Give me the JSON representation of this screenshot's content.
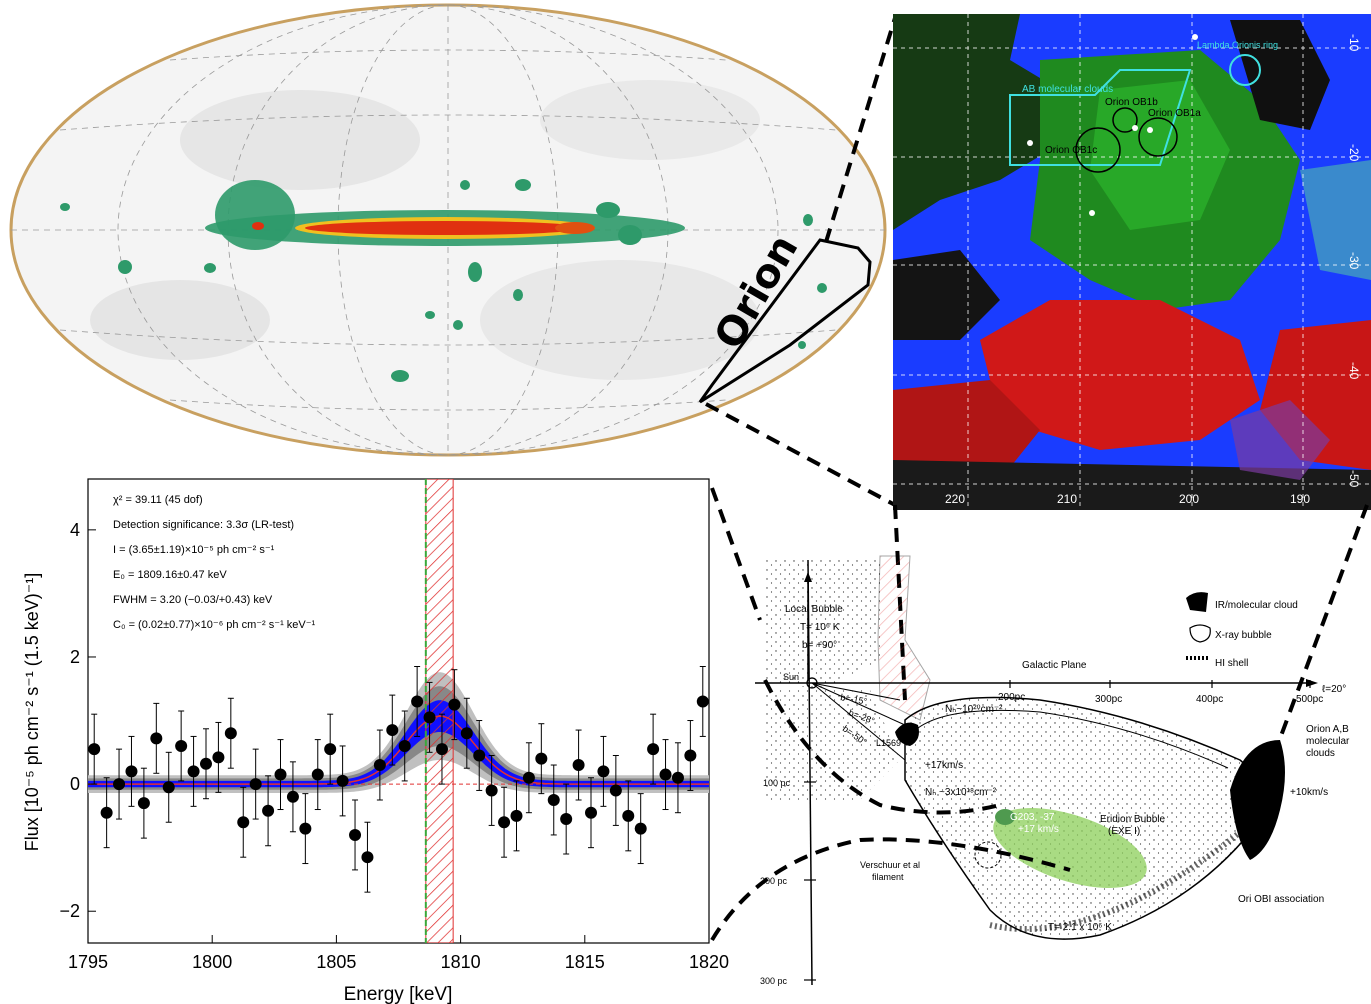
{
  "skymap": {
    "label": "Orion"
  },
  "colormap_panel": {
    "x_ticks": [
      "220",
      "210",
      "200",
      "190"
    ],
    "y_ticks": [
      "-10",
      "-20",
      "-30",
      "-40",
      "-50"
    ],
    "labels": {
      "lambda": "Lambda Orionis ring",
      "ab_clouds": "AB molecular clouds",
      "ob1b": "Orion OB1b",
      "ob1a": "Orion OB1a",
      "ob1c": "Orion OB1c"
    },
    "colors": {
      "blue": "#1a3cff",
      "green": "#1e7a1e",
      "red": "#d01818",
      "cyan": "#40e0e0"
    }
  },
  "chart_data": {
    "type": "scatter",
    "xlabel": "Energy [keV]",
    "ylabel": "Flux [10⁻⁵ ph cm⁻² s⁻¹ (1.5 keV)⁻¹]",
    "xlim": [
      1795,
      1820
    ],
    "ylim": [
      -2.5,
      4.8
    ],
    "x_ticks": [
      1795,
      1800,
      1805,
      1810,
      1815,
      1820
    ],
    "y_ticks": [
      -2,
      0,
      2,
      4
    ],
    "annotations": [
      "χ² = 39.11 (45 dof)",
      "Detection significance: 3.3σ (LR-test)",
      "I = (3.65±1.19)×10⁻⁵ ph cm⁻² s⁻¹",
      "E₀ = 1809.16±0.47 keV",
      "FWHM = 3.20 (−0.03/+0.43) keV",
      "C₀ = (0.02±0.77)×10⁻⁶ ph cm⁻² s⁻¹ keV⁻¹"
    ],
    "line_center": 1809.16,
    "line_fwhm": 3.2,
    "line_amplitude": 1.07,
    "hatched_band": [
      1808.6,
      1809.7
    ],
    "green_line_x": 1808.6,
    "points": [
      {
        "x": 1795.25,
        "y": 0.55,
        "e": 0.55
      },
      {
        "x": 1795.75,
        "y": -0.45,
        "e": 0.55
      },
      {
        "x": 1796.25,
        "y": 0.0,
        "e": 0.55
      },
      {
        "x": 1796.75,
        "y": 0.2,
        "e": 0.55
      },
      {
        "x": 1797.25,
        "y": -0.3,
        "e": 0.55
      },
      {
        "x": 1797.75,
        "y": 0.72,
        "e": 0.55
      },
      {
        "x": 1798.25,
        "y": -0.05,
        "e": 0.55
      },
      {
        "x": 1798.75,
        "y": 0.6,
        "e": 0.55
      },
      {
        "x": 1799.25,
        "y": 0.2,
        "e": 0.55
      },
      {
        "x": 1799.75,
        "y": 0.32,
        "e": 0.55
      },
      {
        "x": 1800.25,
        "y": 0.42,
        "e": 0.55
      },
      {
        "x": 1800.75,
        "y": 0.8,
        "e": 0.55
      },
      {
        "x": 1801.25,
        "y": -0.6,
        "e": 0.55
      },
      {
        "x": 1801.75,
        "y": 0.0,
        "e": 0.55
      },
      {
        "x": 1802.25,
        "y": -0.42,
        "e": 0.55
      },
      {
        "x": 1802.75,
        "y": 0.15,
        "e": 0.55
      },
      {
        "x": 1803.25,
        "y": -0.2,
        "e": 0.55
      },
      {
        "x": 1803.75,
        "y": -0.7,
        "e": 0.55
      },
      {
        "x": 1804.25,
        "y": 0.15,
        "e": 0.55
      },
      {
        "x": 1804.75,
        "y": 0.55,
        "e": 0.55
      },
      {
        "x": 1805.25,
        "y": 0.05,
        "e": 0.55
      },
      {
        "x": 1805.75,
        "y": -0.8,
        "e": 0.55
      },
      {
        "x": 1806.25,
        "y": -1.15,
        "e": 0.55
      },
      {
        "x": 1806.75,
        "y": 0.3,
        "e": 0.55
      },
      {
        "x": 1807.25,
        "y": 0.85,
        "e": 0.55
      },
      {
        "x": 1807.75,
        "y": 0.6,
        "e": 0.55
      },
      {
        "x": 1808.25,
        "y": 1.3,
        "e": 0.55
      },
      {
        "x": 1808.75,
        "y": 1.05,
        "e": 0.55
      },
      {
        "x": 1809.25,
        "y": 0.55,
        "e": 0.55
      },
      {
        "x": 1809.75,
        "y": 1.25,
        "e": 0.55
      },
      {
        "x": 1810.25,
        "y": 0.8,
        "e": 0.55
      },
      {
        "x": 1810.75,
        "y": 0.45,
        "e": 0.55
      },
      {
        "x": 1811.25,
        "y": -0.1,
        "e": 0.55
      },
      {
        "x": 1811.75,
        "y": -0.6,
        "e": 0.55
      },
      {
        "x": 1812.25,
        "y": -0.5,
        "e": 0.55
      },
      {
        "x": 1812.75,
        "y": 0.1,
        "e": 0.55
      },
      {
        "x": 1813.25,
        "y": 0.4,
        "e": 0.55
      },
      {
        "x": 1813.75,
        "y": -0.25,
        "e": 0.55
      },
      {
        "x": 1814.25,
        "y": -0.55,
        "e": 0.55
      },
      {
        "x": 1814.75,
        "y": 0.3,
        "e": 0.55
      },
      {
        "x": 1815.25,
        "y": -0.45,
        "e": 0.55
      },
      {
        "x": 1815.75,
        "y": 0.2,
        "e": 0.55
      },
      {
        "x": 1816.25,
        "y": -0.1,
        "e": 0.55
      },
      {
        "x": 1816.75,
        "y": -0.5,
        "e": 0.55
      },
      {
        "x": 1817.25,
        "y": -0.7,
        "e": 0.55
      },
      {
        "x": 1817.75,
        "y": 0.55,
        "e": 0.55
      },
      {
        "x": 1818.25,
        "y": 0.15,
        "e": 0.55
      },
      {
        "x": 1818.75,
        "y": 0.1,
        "e": 0.55
      },
      {
        "x": 1819.25,
        "y": 0.45,
        "e": 0.55
      },
      {
        "x": 1819.75,
        "y": 1.3,
        "e": 0.55
      }
    ]
  },
  "diagram": {
    "local_bubble": "Local Bubble",
    "local_temp": "T= 10⁶ K",
    "b90": "b= +90°",
    "sun": "Sun",
    "galactic_plane": "Galactic Plane",
    "dist_200": "200pc",
    "dist_300": "300pc",
    "dist_400": "400pc",
    "dist_500": "500pc",
    "l20": "ℓ=20°",
    "b_m15": "b=-15°",
    "b_m28": "b=-28°",
    "b_m50": "b=-50°",
    "l1569": "L1569",
    "nh1": "Nₕ~10²⁰cm⁻²",
    "nh2": "Nₕ ~3x10¹⁸cm⁻²",
    "v17": "+17km/s",
    "v10": "+10km/s",
    "legend_ir": "IR/molecular cloud",
    "legend_xray": "X-ray bubble",
    "legend_hi": "HI shell",
    "orion_ab": "Orion A,B",
    "molecular": "molecular",
    "clouds": "clouds",
    "eridion": "Eridion Bubble",
    "exe": "(EXE I)",
    "g203": "G203, -37",
    "g203v": "+17 km/s",
    "verschuur": "Verschuur et al",
    "filament": "filament",
    "t21": "T= 2.1 x 10⁶ K",
    "ori_ob1": "Ori OBI association",
    "y100": "100 pc",
    "y200": "200 pc",
    "y300": "300 pc"
  }
}
